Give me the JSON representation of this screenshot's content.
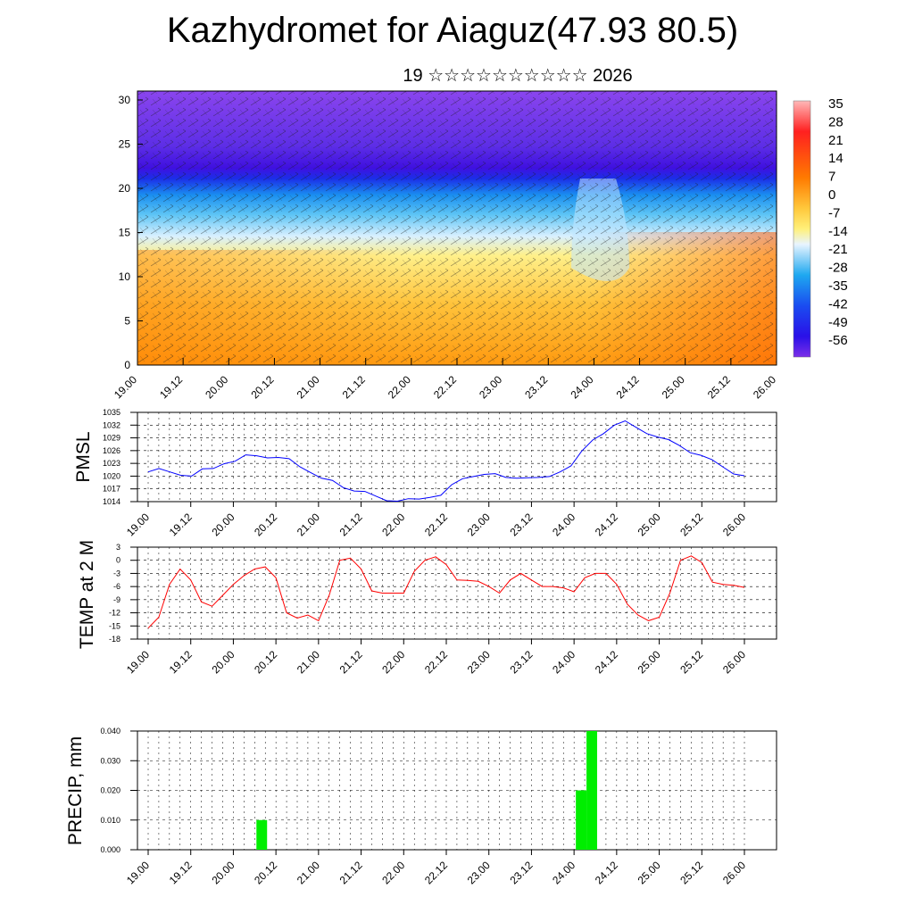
{
  "header": {
    "title": "Kazhydromet for Aiaguz(47.93 80.5)",
    "date": "19 ☆☆☆☆☆☆☆☆☆☆ 2026"
  },
  "chart_data": [
    {
      "type": "heatmap",
      "name": "vertical-cross-section",
      "ylim": [
        0,
        30
      ],
      "yticks": [
        "0",
        "5",
        "10",
        "15",
        "20",
        "25",
        "30"
      ],
      "xticks": [
        "19.00",
        "19.12",
        "20.00",
        "20.12",
        "21.00",
        "21.12",
        "22.00",
        "22.12",
        "23.00",
        "23.12",
        "24.00",
        "24.12",
        "25.00",
        "25.12",
        "26.00"
      ],
      "colorbar": [
        "35",
        "28",
        "21",
        "14",
        "7",
        "0",
        "-7",
        "-14",
        "-21",
        "-28",
        "-35",
        "-42",
        "-49",
        "-56"
      ],
      "colors": {
        "warm": "#ff9c0a",
        "yellow": "#fff079",
        "cold": "#2ea6f0",
        "deep": "#3f00e0",
        "violet": "#7b2fe8"
      }
    },
    {
      "type": "line",
      "name": "pmsl",
      "ylabel": "PMSL",
      "ylim": [
        1014,
        1035
      ],
      "yticks": [
        "1014",
        "1017",
        "1020",
        "1023",
        "1026",
        "1029",
        "1032",
        "1035"
      ],
      "xticks": [
        "19.00",
        "19.12",
        "20.00",
        "20.12",
        "21.00",
        "21.12",
        "22.00",
        "22.12",
        "23.00",
        "23.12",
        "24.00",
        "24.12",
        "25.00",
        "25.12",
        "26.00"
      ],
      "color": "#0000ff",
      "values": [
        1021.0,
        1021.8,
        1021.0,
        1020.2,
        1020.0,
        1021.7,
        1021.8,
        1022.9,
        1023.5,
        1025.0,
        1024.8,
        1024.3,
        1024.4,
        1024.1,
        1022.2,
        1020.8,
        1019.5,
        1019.0,
        1017.3,
        1016.5,
        1016.4,
        1015.3,
        1014.2,
        1014.1,
        1014.7,
        1014.6,
        1015.0,
        1015.5,
        1018.0,
        1019.4,
        1019.9,
        1020.4,
        1020.6,
        1019.7,
        1019.5,
        1019.6,
        1019.7,
        1019.9,
        1021.0,
        1022.4,
        1025.9,
        1028.5,
        1030.0,
        1032.0,
        1033.0,
        1031.5,
        1030.0,
        1029.2,
        1028.6,
        1027.2,
        1025.5,
        1024.9,
        1023.9,
        1022.2,
        1020.5,
        1020.1
      ]
    },
    {
      "type": "line",
      "name": "temp-2m",
      "ylabel": "TEMP at 2 M",
      "ylim": [
        -18,
        3
      ],
      "yticks": [
        "-18",
        "-15",
        "-12",
        "-9",
        "-6",
        "-3",
        "0",
        "3"
      ],
      "xticks": [
        "19.00",
        "19.12",
        "20.00",
        "20.12",
        "21.00",
        "21.12",
        "22.00",
        "22.12",
        "23.00",
        "23.12",
        "24.00",
        "24.12",
        "25.00",
        "25.12",
        "26.00"
      ],
      "color": "#ff0000",
      "values": [
        -15.5,
        -13.0,
        -5.5,
        -2.0,
        -4.5,
        -9.5,
        -10.5,
        -8.0,
        -5.5,
        -3.5,
        -2.0,
        -1.5,
        -4.0,
        -12.0,
        -13.2,
        -12.5,
        -13.8,
        -8.0,
        0.0,
        0.5,
        -2.0,
        -7.0,
        -7.5,
        -7.5,
        -7.5,
        -2.5,
        0.0,
        0.8,
        -1.0,
        -4.5,
        -4.6,
        -4.8,
        -6.0,
        -7.5,
        -4.5,
        -3.0,
        -4.5,
        -6.0,
        -6.0,
        -6.3,
        -7.2,
        -4.0,
        -3.0,
        -3.0,
        -5.5,
        -10.0,
        -12.5,
        -13.8,
        -13.0,
        -7.5,
        0.0,
        1.0,
        -0.5,
        -5.0,
        -5.5,
        -5.7,
        -6.2
      ]
    },
    {
      "type": "bar",
      "name": "precip",
      "ylabel": "PRECIP, mm",
      "ylim": [
        0,
        0.04
      ],
      "yticks": [
        "0.000",
        "0.010",
        "0.020",
        "0.030",
        "0.040"
      ],
      "xticks": [
        "19.00",
        "19.12",
        "20.00",
        "20.12",
        "21.00",
        "21.12",
        "22.00",
        "22.12",
        "23.00",
        "23.12",
        "24.00",
        "24.12",
        "25.00",
        "25.12",
        "26.00"
      ],
      "color": "#00ee00",
      "bars": [
        {
          "time": 1.25,
          "value": 0.01
        },
        {
          "time": 5.0,
          "value": 0.02
        },
        {
          "time": 5.125,
          "value": 0.04
        }
      ]
    }
  ]
}
